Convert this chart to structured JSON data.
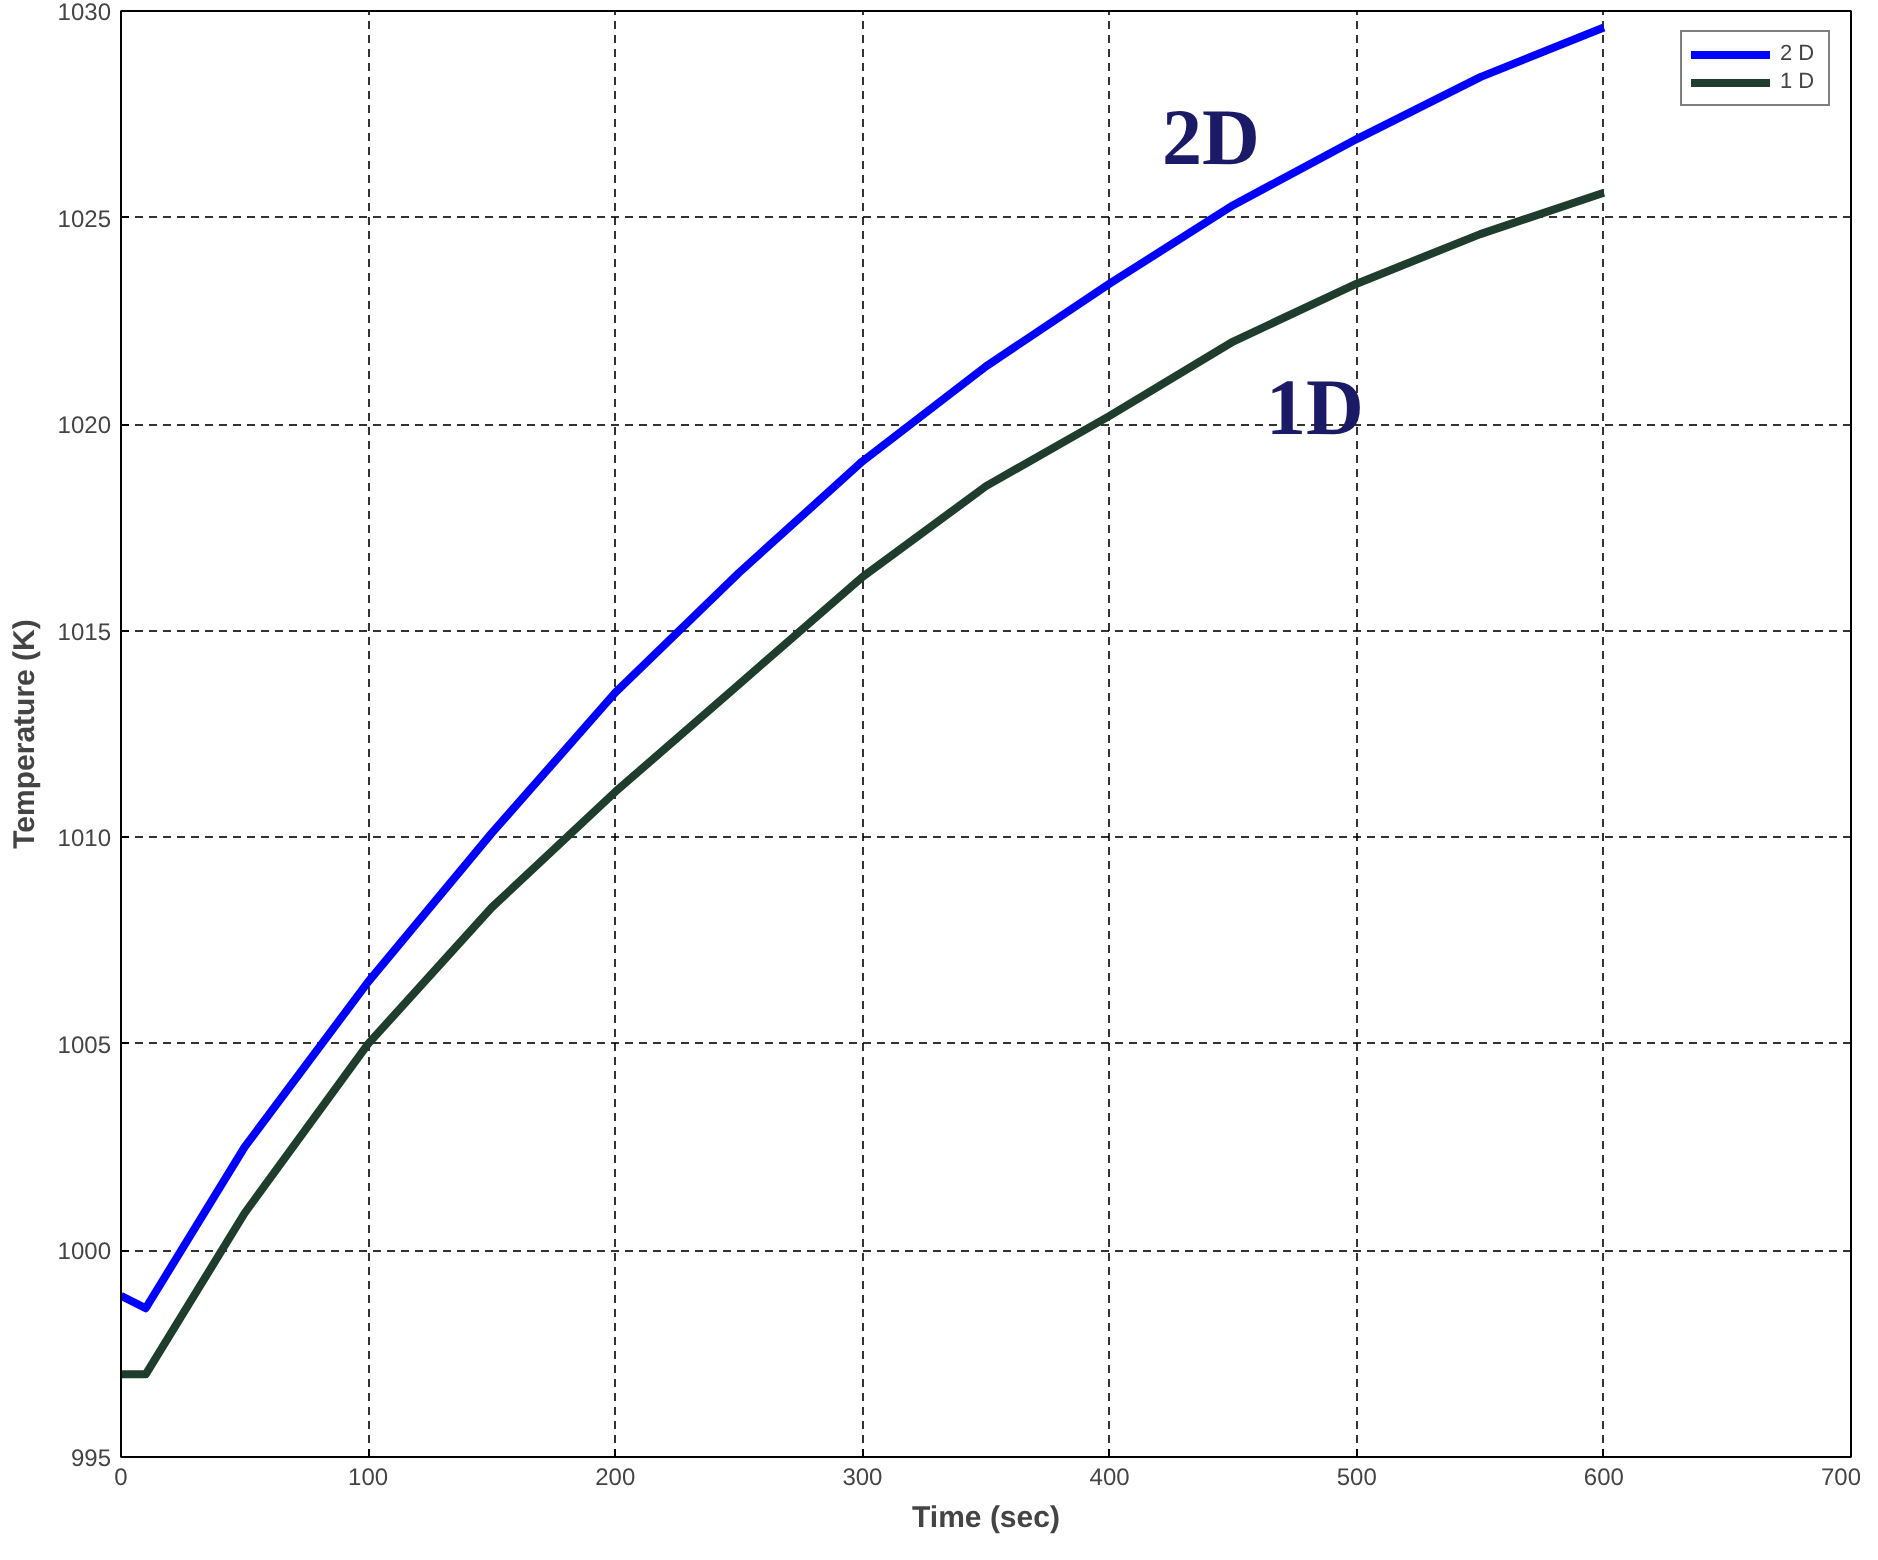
{
  "chart_data": {
    "type": "line",
    "xlabel": "Time (sec)",
    "ylabel": "Temperature (K)",
    "xlim": [
      0,
      700
    ],
    "xticks": [
      0,
      100,
      200,
      300,
      400,
      500,
      600,
      700
    ],
    "ylim": [
      995,
      1030
    ],
    "yticks": [
      995,
      1000,
      1005,
      1010,
      1015,
      1020,
      1025,
      1030
    ],
    "grid": true,
    "legend": "top right",
    "series": [
      {
        "name": "2 D",
        "color": "#0000ff",
        "x": [
          0,
          10,
          50,
          100,
          150,
          200,
          250,
          300,
          350,
          400,
          450,
          500,
          550,
          600
        ],
        "values": [
          998.9,
          998.6,
          1002.5,
          1006.5,
          1010.1,
          1013.5,
          1016.4,
          1019.1,
          1021.4,
          1023.4,
          1025.3,
          1026.9,
          1028.4,
          1029.6
        ]
      },
      {
        "name": "1 D",
        "color": "#1f3d2d",
        "x": [
          0,
          10,
          50,
          100,
          150,
          200,
          250,
          300,
          350,
          400,
          450,
          500,
          550,
          600
        ],
        "values": [
          997.0,
          997.0,
          1000.9,
          1005.0,
          1008.3,
          1011.1,
          1013.7,
          1016.3,
          1018.5,
          1020.2,
          1022.0,
          1023.4,
          1024.6,
          1025.6
        ]
      }
    ],
    "annotations": [
      "2D",
      "1D"
    ]
  }
}
